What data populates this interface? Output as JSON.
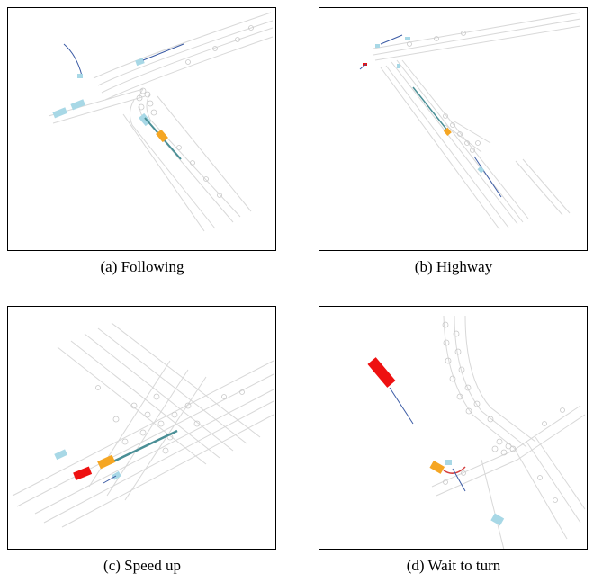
{
  "figure": {
    "colors": {
      "lane": "#d8d8d8",
      "lane_node": "#c8c8c8",
      "ego": "#f5a623",
      "agent": "#a8d8e6",
      "danger": "#ee1111",
      "trajectory": "#4a8f96",
      "prediction": "#3b5ba5",
      "turn_path": "#d44040"
    },
    "panels": [
      {
        "id": "a",
        "caption": "(a) Following"
      },
      {
        "id": "b",
        "caption": "(b) Highway"
      },
      {
        "id": "c",
        "caption": "(c) Speed up"
      },
      {
        "id": "d",
        "caption": "(d) Wait to turn"
      }
    ]
  }
}
